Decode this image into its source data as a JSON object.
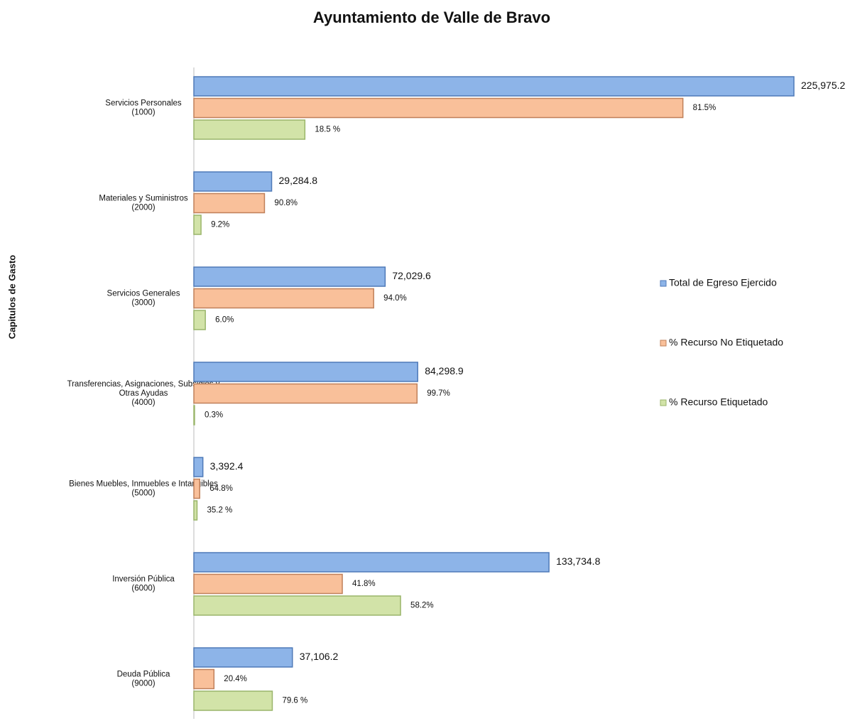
{
  "chart_data": {
    "type": "bar",
    "orientation": "horizontal",
    "title": "Ayuntamiento de Valle de Bravo",
    "y_label": "Capitulos de Gasto",
    "categories": [
      [
        "Servicios Personales",
        "(1000)"
      ],
      [
        "Materiales y Suministros",
        "(2000)"
      ],
      [
        "Servicios Generales",
        "(3000)"
      ],
      [
        "Transferencias, Asignaciones, Subsidios y",
        "Otras Ayudas",
        "(4000)"
      ],
      [
        "Bienes Muebles, Inmuebles e Intangibles",
        "(5000)"
      ],
      [
        "Inversión Pública",
        "(6000)"
      ],
      [
        "Deuda Pública",
        "(9000)"
      ]
    ],
    "series": [
      {
        "name": "Total de Egreso Ejercido",
        "color": "#8db4e8",
        "stroke": "#4f7ab8",
        "values": [
          225975.2,
          29284.8,
          72029.6,
          84298.9,
          3392.4,
          133734.8,
          37106.2
        ],
        "value_labels": [
          "225,975.2",
          "29,284.8",
          "72,029.6",
          "84,298.9",
          "3,392.4",
          "133,734.8",
          "37,106.2"
        ]
      },
      {
        "name": "% Recurso No Etiquetado",
        "color": "#f9c09a",
        "stroke": "#c0805a",
        "values": [
          81.5,
          90.8,
          94.0,
          99.7,
          64.8,
          41.8,
          20.4
        ],
        "value_labels": [
          "81.5%",
          "90.8%",
          "94.0%",
          "99.7%",
          "64.8%",
          "41.8%",
          "20.4%"
        ]
      },
      {
        "name": "% Recurso Etiquetado",
        "color": "#d2e3a8",
        "stroke": "#9ab56a",
        "values": [
          18.5,
          9.2,
          6.0,
          0.3,
          35.2,
          58.2,
          79.6
        ],
        "value_labels": [
          "18.5 %",
          "9.2%",
          "6.0%",
          "0.3%",
          "35.2 %",
          "58.2%",
          "79.6 %"
        ]
      }
    ],
    "legend": "right"
  }
}
